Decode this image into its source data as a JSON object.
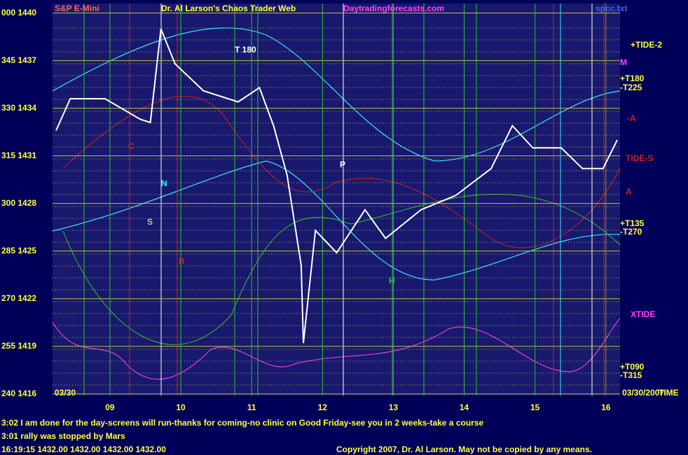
{
  "header": {
    "symbol": "S&P E-Mini",
    "title": "Dr. Al Larson's Chaos Trader Web",
    "site": "Daytradingforecasts.com",
    "file": "spcc.txt"
  },
  "chart_data": {
    "type": "line",
    "date_left": "03/30",
    "date_right": "03/30/2007",
    "xlim": [
      8.19,
      16.2
    ],
    "ylim": [
      1415.9,
      1440.6
    ],
    "xticks": [
      {
        "value": 9,
        "label": "09"
      },
      10,
      11,
      12,
      13,
      14,
      15,
      16
    ],
    "yticks": [
      {
        "value": 1440,
        "label": "000 1440"
      },
      {
        "value": 1437,
        "label": "345 1437"
      },
      {
        "value": 1434,
        "label": "330 1434"
      },
      {
        "value": 1431,
        "label": "315 1431"
      },
      {
        "value": 1428,
        "label": "300 1428"
      },
      {
        "value": 1425,
        "label": "285 1425"
      },
      {
        "value": 1422,
        "label": "270 1422"
      },
      {
        "value": 1419,
        "label": "255 1419"
      },
      {
        "value": 1416,
        "label": "240 1416"
      }
    ],
    "grid": true,
    "annotations": [
      "T 180",
      "+TIDE-2",
      "+T180",
      "-T225",
      "+T135",
      "-T270",
      "XTIDE",
      "+T090",
      "-T315",
      "TIME",
      "P",
      "M",
      "H",
      "N",
      "S",
      "R",
      "A",
      "C",
      "-A",
      "TIDE-S"
    ],
    "series": [
      {
        "color": "#ffffff",
        "x": [
          8.24,
          8.44,
          8.93,
          9.43,
          9.57,
          9.72,
          9.92,
          10.32,
          10.81,
          11.11,
          11.31,
          11.5,
          11.7,
          11.73,
          11.9,
          12.2,
          12.6,
          12.89,
          13.39,
          13.88,
          14.38,
          14.68,
          14.97,
          15.37,
          15.67,
          15.96,
          16.16
        ],
        "values": [
          1432.6,
          1434.6,
          1434.6,
          1433.3,
          1433.1,
          1439.0,
          1436.8,
          1435.1,
          1434.4,
          1435.3,
          1432.9,
          1429.8,
          1424.1,
          1419.2,
          1426.3,
          1424.9,
          1427.6,
          1425.8,
          1427.6,
          1428.5,
          1430.2,
          1432.9,
          1431.5,
          1431.5,
          1430.2,
          1430.2,
          1432.0
        ]
      }
    ]
  },
  "messages": [
    "3:02 I am done for the day-screens will run-thanks for coming-no clinic on Good Friday-see you in 2 weeks-take a  course",
    "3:01 rally was stopped by Mars",
    "16:19:15  1432.00 1432.00 1432.00 1432.00"
  ],
  "copyright": "Copyright 2007, Dr. Al Larson. May not be copied by any means."
}
